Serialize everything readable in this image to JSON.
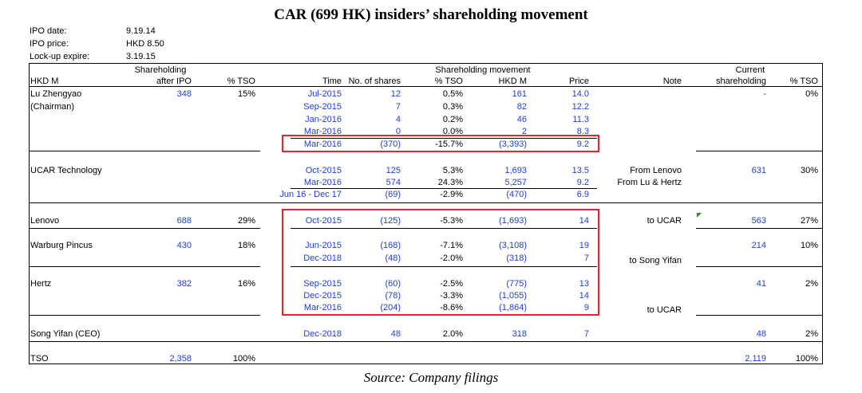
{
  "title": "CAR (699 HK) insiders’ shareholding movement",
  "source": "Source: Company filings",
  "meta": [
    {
      "label": "IPO date:",
      "value": "9.19.14"
    },
    {
      "label": "IPO price:",
      "value": "HKD 8.50"
    },
    {
      "label": "Lock-up expire:",
      "value": "3.19.15"
    }
  ],
  "headers": {
    "shareholding": "Shareholding",
    "hkdm": "HKD M",
    "after_ipo": "after IPO",
    "tso": "% TSO",
    "movement": "Shareholding movement",
    "time": "Time",
    "no_shares": "No. of shares",
    "mv_tso": "% TSO",
    "mv_hkdm": "HKD M",
    "price": "Price",
    "note": "Note",
    "current": "Current",
    "cur_shareholding": "shareholding",
    "cur_tso": "% TSO"
  },
  "rows": {
    "lu": {
      "name": "Lu Zhengyao",
      "sub": "(Chairman)",
      "after_ipo": "348",
      "tso": "15%",
      "cur": "-",
      "cur_tso": "0%",
      "moves": [
        {
          "time": "Jul-2015",
          "shares": "12",
          "pct": "0.5%",
          "hkdm": "161",
          "price": "14.0"
        },
        {
          "time": "Sep-2015",
          "shares": "7",
          "pct": "0.3%",
          "hkdm": "82",
          "price": "12.2"
        },
        {
          "time": "Jan-2016",
          "shares": "4",
          "pct": "0.2%",
          "hkdm": "46",
          "price": "11.3"
        },
        {
          "time": "Mar-2016",
          "shares": "0",
          "pct": "0.0%",
          "hkdm": "2",
          "price": "8.3"
        },
        {
          "time": "Mar-2016",
          "shares": "(370)",
          "pct": "-15.7%",
          "hkdm": "(3,393)",
          "price": "9.2"
        }
      ]
    },
    "ucar": {
      "name": "UCAR Technology",
      "cur": "631",
      "cur_tso": "30%",
      "moves": [
        {
          "time": "Oct-2015",
          "shares": "125",
          "pct": "5.3%",
          "hkdm": "1,693",
          "price": "13.5",
          "note": "From Lenovo"
        },
        {
          "time": "Mar-2016",
          "shares": "574",
          "pct": "24.3%",
          "hkdm": "5,257",
          "price": "9.2",
          "note": "From Lu & Hertz"
        },
        {
          "time": "Jun 16 - Dec 17",
          "shares": "(69)",
          "pct": "-2.9%",
          "hkdm": "(470)",
          "price": "6.9"
        }
      ]
    },
    "lenovo": {
      "name": "Lenovo",
      "after_ipo": "688",
      "tso": "29%",
      "cur": "563",
      "cur_tso": "27%",
      "moves": [
        {
          "time": "Oct-2015",
          "shares": "(125)",
          "pct": "-5.3%",
          "hkdm": "(1,693)",
          "price": "14",
          "note": "to UCAR"
        }
      ]
    },
    "warburg": {
      "name": "Warburg Pincus",
      "after_ipo": "430",
      "tso": "18%",
      "cur": "214",
      "cur_tso": "10%",
      "moves": [
        {
          "time": "Jun-2015",
          "shares": "(168)",
          "pct": "-7.1%",
          "hkdm": "(3,108)",
          "price": "19"
        },
        {
          "time": "Dec-2018",
          "shares": "(48)",
          "pct": "-2.0%",
          "hkdm": "(318)",
          "price": "7",
          "note": "to Song Yifan"
        }
      ]
    },
    "hertz": {
      "name": "Hertz",
      "after_ipo": "382",
      "tso": "16%",
      "cur": "41",
      "cur_tso": "2%",
      "moves": [
        {
          "time": "Sep-2015",
          "shares": "(60)",
          "pct": "-2.5%",
          "hkdm": "(775)",
          "price": "13"
        },
        {
          "time": "Dec-2015",
          "shares": "(78)",
          "pct": "-3.3%",
          "hkdm": "(1,055)",
          "price": "14"
        },
        {
          "time": "Mar-2016",
          "shares": "(204)",
          "pct": "-8.6%",
          "hkdm": "(1,864)",
          "price": "9",
          "note": "to UCAR"
        }
      ]
    },
    "song": {
      "name": "Song Yifan (CEO)",
      "cur": "48",
      "cur_tso": "2%",
      "moves": [
        {
          "time": "Dec-2018",
          "shares": "48",
          "pct": "2.0%",
          "hkdm": "318",
          "price": "7"
        }
      ]
    },
    "tso": {
      "name": "TSO",
      "after_ipo": "2,358",
      "tso": "100%",
      "cur": "2,119",
      "cur_tso": "100%"
    }
  }
}
